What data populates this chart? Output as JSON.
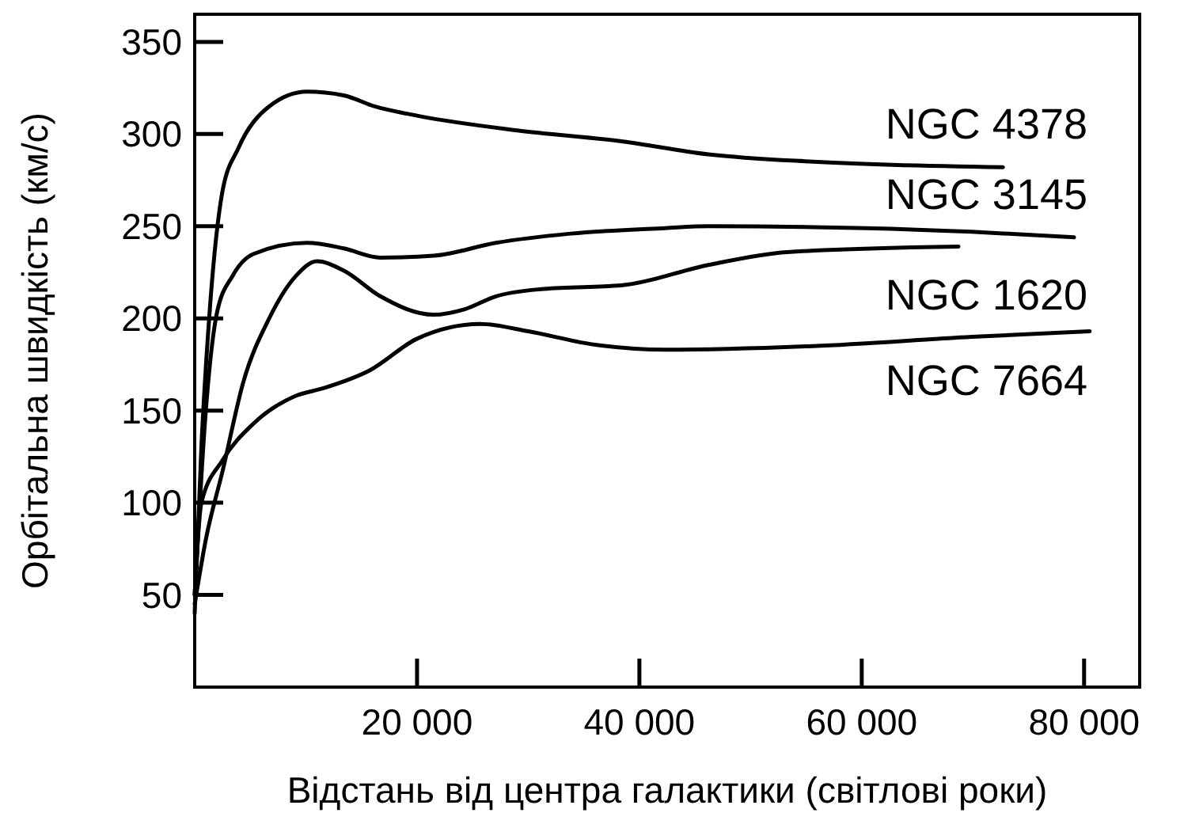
{
  "chart_data": {
    "type": "line",
    "xlabel": "Відстань від центра галактики (світлові роки)",
    "ylabel": "Орбітальна швидкість (км/с)",
    "xlim": [
      0,
      85000
    ],
    "ylim": [
      0,
      365
    ],
    "xticks": [
      {
        "value": 20000,
        "label": "20 000"
      },
      {
        "value": 40000,
        "label": "40 000"
      },
      {
        "value": 60000,
        "label": "60 000"
      },
      {
        "value": 80000,
        "label": "80 000"
      }
    ],
    "yticks": [
      50,
      100,
      150,
      200,
      250,
      300,
      350
    ],
    "marker": "none",
    "line_style": "solid",
    "series": [
      {
        "name": "NGC 4378",
        "color": "#000000",
        "x": [
          0,
          600,
          1300,
          2500,
          3900,
          6700,
          10100,
          13400,
          16200,
          20000,
          29000,
          38500,
          46200,
          55600,
          72700
        ],
        "values": [
          40,
          130,
          200,
          269,
          292,
          315,
          323,
          321,
          315,
          310,
          302,
          296,
          289,
          285,
          282
        ]
      },
      {
        "name": "NGC 3145",
        "color": "#000000",
        "x": [
          0,
          1000,
          2000,
          3400,
          5300,
          10100,
          13400,
          16700,
          21500,
          27100,
          33800,
          42300,
          46200,
          60400,
          69900,
          79100
        ],
        "values": [
          50,
          150,
          203,
          223,
          235,
          241,
          238,
          233,
          234,
          241,
          246,
          249,
          250,
          249,
          247,
          244
        ]
      },
      {
        "name": "NGC 1620",
        "color": "#000000",
        "x": [
          0,
          1000,
          2500,
          4400,
          6700,
          9100,
          11000,
          13400,
          16700,
          21500,
          24300,
          27100,
          31400,
          38500,
          46200,
          53300,
          68700
        ],
        "values": [
          45,
          80,
          117,
          166,
          200,
          223,
          231,
          226,
          212,
          202,
          205,
          212,
          216,
          218,
          229,
          236,
          239
        ]
      },
      {
        "name": "NGC 7664",
        "color": "#000000",
        "x": [
          0,
          600,
          2500,
          5300,
          9100,
          11500,
          15800,
          20000,
          25700,
          30000,
          35700,
          42300,
          55600,
          69900,
          80500
        ],
        "values": [
          50,
          100,
          123,
          143,
          158,
          162,
          172,
          189,
          197,
          193,
          186,
          183,
          185,
          190,
          193
        ]
      }
    ]
  }
}
